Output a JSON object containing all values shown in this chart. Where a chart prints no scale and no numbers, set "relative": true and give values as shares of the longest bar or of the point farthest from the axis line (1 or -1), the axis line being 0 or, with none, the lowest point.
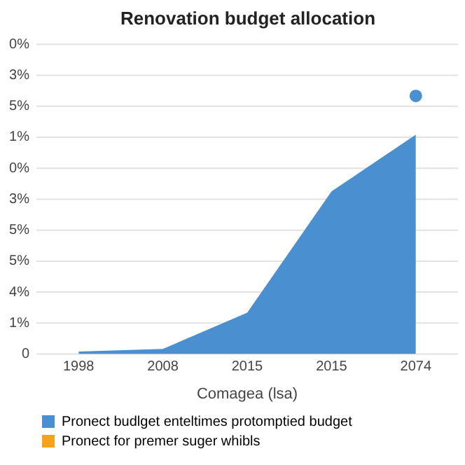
{
  "chart_data": {
    "type": "area",
    "title": "Renovation budget allocation",
    "xlabel": "Comagea (lsa)",
    "categories": [
      "1998",
      "2008",
      "2015",
      "2015",
      "2074"
    ],
    "relative": true,
    "grid": "y",
    "legend": "bottom left",
    "marker": "none",
    "annotations": [
      "0%",
      "3%",
      "5%",
      "1%",
      "0%",
      "3%",
      "5%",
      "5%",
      "4%",
      "1%",
      "0"
    ],
    "series": [
      {
        "name": "Pronect budlget enteltimes protomptied budget",
        "color": "#4a90d0",
        "values": [
          0.01,
          0.02,
          0.16,
          0.63,
          0.85
        ]
      },
      {
        "name": "Pronect for premer suger whibls",
        "color": "#f5a31a",
        "values": [
          null,
          null,
          null,
          null,
          null
        ]
      },
      {
        "type": "scatter",
        "color": "#4a90d0",
        "marker": "circle",
        "values": [
          null,
          null,
          null,
          null,
          1
        ]
      }
    ]
  }
}
